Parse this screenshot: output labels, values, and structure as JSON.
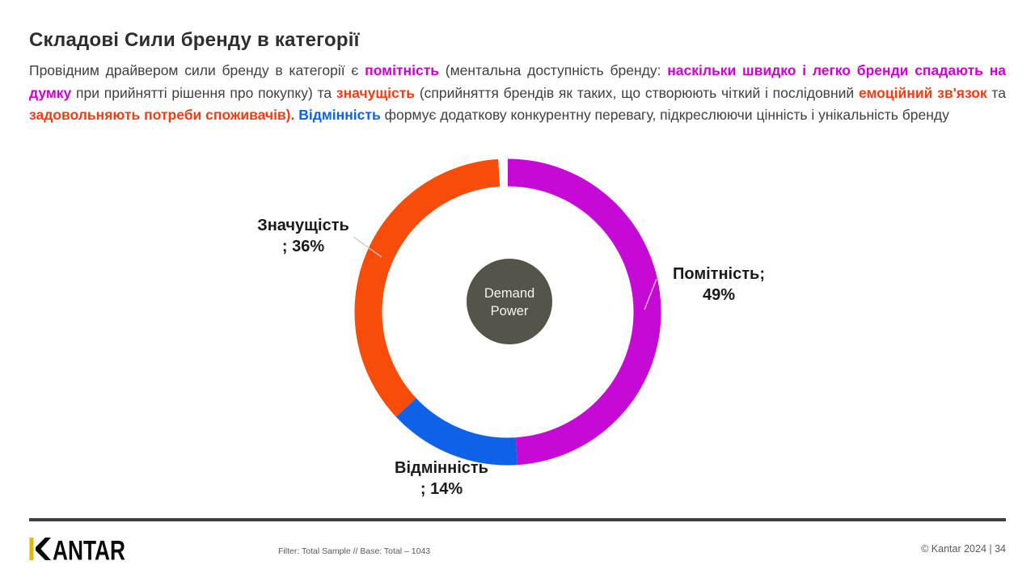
{
  "header": {
    "title": "Складові Сили бренду в категорії"
  },
  "intro": {
    "segments": [
      {
        "text": "Провідним драйвером сили бренду в категорії є ",
        "style": "normal"
      },
      {
        "text": "помітність",
        "style": "magenta"
      },
      {
        "text": " (ментальна доступність бренду: ",
        "style": "normal"
      },
      {
        "text": "наскільки швидко і легко бренди спадають на думку",
        "style": "magenta"
      },
      {
        "text": " при прийнятті рішення про покупку) та ",
        "style": "normal"
      },
      {
        "text": "значущість",
        "style": "orange"
      },
      {
        "text": " (сприйняття брендів як таких, що створюють чіткий і послідовний ",
        "style": "normal"
      },
      {
        "text": "емоційний зв'язок",
        "style": "orange"
      },
      {
        "text": " та ",
        "style": "normal"
      },
      {
        "text": "задовольняють потреби споживачів).",
        "style": "orange"
      },
      {
        "text": " ",
        "style": "normal"
      },
      {
        "text": "Відмінність",
        "style": "blue"
      },
      {
        "text": " формує додаткову конкурентну перевагу, підкреслюючи цінність і унікальність бренду",
        "style": "normal"
      }
    ]
  },
  "chart_data": {
    "type": "donut",
    "title": "Складові Сили бренду в категорії",
    "start_angle_deg": 0,
    "direction": "clockwise",
    "segments": [
      {
        "label": "Помітність",
        "value_pct": 49,
        "color": "#C50AD5",
        "callout_line1": "Помітність;",
        "callout_line2": "49%"
      },
      {
        "label": "Відмінність",
        "value_pct": 14,
        "color": "#0D62E8",
        "callout_line1": "Відмінність",
        "callout_line2": "; 14%"
      },
      {
        "label": "Значущість",
        "value_pct": 36,
        "color": "#F84D0A",
        "callout_line1": "Значущість",
        "callout_line2": "; 36%"
      }
    ],
    "center_label": [
      "Demand",
      "Power"
    ],
    "center_circle_color": "#55544A",
    "center_text_color": "#F5F4EF",
    "legend_position": "none"
  },
  "footer": {
    "logo_text": "KANTAR",
    "logo_accent_color": "#E5B611",
    "filter_text": "Filter: Total Sample // Base: Total  – 1043",
    "copyright": "© Kantar 2024 | 34"
  },
  "colors": {
    "highlight_magenta": "#CC00CC",
    "highlight_orange": "#F23D14",
    "highlight_blue": "#0D62E8",
    "body_text": "#3F3F3F"
  }
}
